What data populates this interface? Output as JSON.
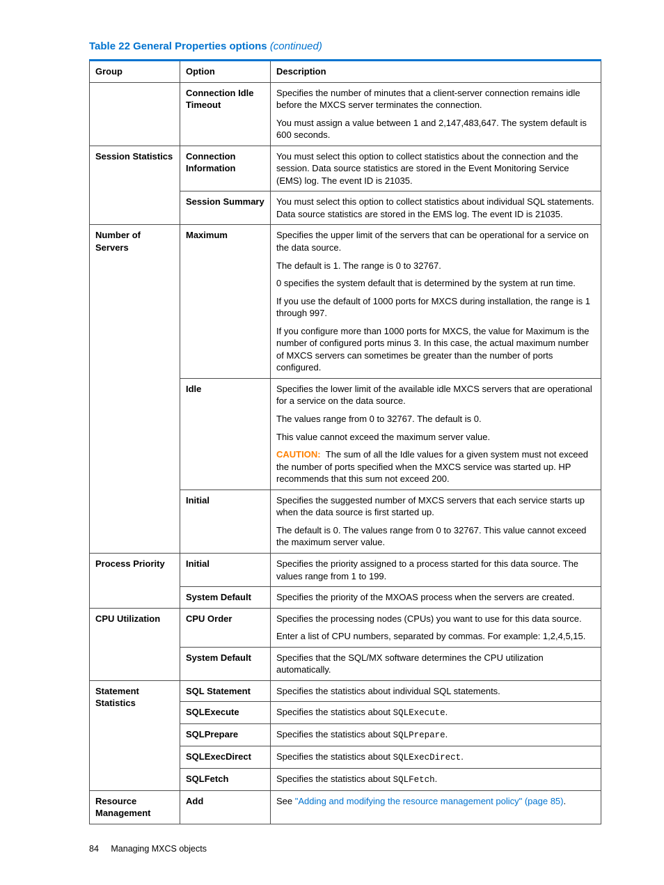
{
  "colors": {
    "accent": "#0073cf",
    "caution": "#ff8000",
    "border": "#4c4c4c"
  },
  "title": {
    "main": "Table 22 General Properties options",
    "suffix": "(continued)"
  },
  "columns": {
    "group": "Group",
    "option": "Option",
    "description": "Description"
  },
  "rows": [
    {
      "group": "",
      "groupRowspan": 1,
      "option": "Connection Idle Timeout",
      "description": [
        {
          "type": "p",
          "text": "Specifies the number of minutes that a client-server connection remains idle before the MXCS server terminates the connection."
        },
        {
          "type": "p",
          "text": "You must assign a value between 1 and 2,147,483,647. The system default is 600 seconds."
        }
      ]
    },
    {
      "group": "Session Statistics",
      "groupRowspan": 2,
      "option": "Connection Information",
      "description": [
        {
          "type": "p",
          "text": "You must select this option to collect statistics about the connection and the session. Data source statistics are stored in the Event Monitoring Service (EMS) log. The event ID is 21035."
        }
      ]
    },
    {
      "option": "Session Summary",
      "description": [
        {
          "type": "p",
          "text": "You must select this option to collect statistics about individual SQL statements. Data source statistics are stored in the EMS log. The event ID is 21035."
        }
      ]
    },
    {
      "group": "Number of Servers",
      "groupRowspan": 3,
      "option": "Maximum",
      "description": [
        {
          "type": "p",
          "text": "Specifies the upper limit of the servers that can be operational for a service on the data source."
        },
        {
          "type": "p",
          "text": "The default is 1. The range is 0 to 32767."
        },
        {
          "type": "p",
          "text": "0 specifies the system default that is determined by the system at run time."
        },
        {
          "type": "p",
          "text": "If you use the default of 1000 ports for MXCS during installation, the range is 1 through 997."
        },
        {
          "type": "p",
          "text": "If you configure more than 1000 ports for MXCS, the value for Maximum is the number of configured ports minus 3. In this case, the actual maximum number of MXCS servers can sometimes be greater than the number of ports configured."
        }
      ]
    },
    {
      "option": "Idle",
      "description": [
        {
          "type": "p",
          "text": "Specifies the lower limit of the available idle MXCS servers that are operational for a service on the data source."
        },
        {
          "type": "p",
          "text": "The values range from 0 to 32767. The default is 0."
        },
        {
          "type": "p",
          "text": "This value cannot exceed the maximum server value."
        },
        {
          "type": "caution",
          "label": "CAUTION:",
          "text": "The sum of all the Idle values for a given system must not exceed the number of ports specified when the MXCS service was started up. HP recommends that this sum not exceed 200."
        }
      ]
    },
    {
      "option": "Initial",
      "description": [
        {
          "type": "p",
          "text": "Specifies the suggested number of MXCS servers that each service starts up when the data source is first started up."
        },
        {
          "type": "p",
          "text": "The default is 0. The values range from 0 to 32767. This value cannot exceed the maximum server value."
        }
      ]
    },
    {
      "group": "Process Priority",
      "groupRowspan": 2,
      "option": "Initial",
      "description": [
        {
          "type": "p",
          "text": "Specifies the priority assigned to a process started for this data source. The values range from 1 to 199."
        }
      ]
    },
    {
      "option": "System Default",
      "description": [
        {
          "type": "p",
          "text": "Specifies the priority of the MXOAS process when the servers are created."
        }
      ]
    },
    {
      "group": "CPU Utilization",
      "groupRowspan": 2,
      "option": "CPU Order",
      "description": [
        {
          "type": "p",
          "text": "Specifies the processing nodes (CPUs) you want to use for this data source."
        },
        {
          "type": "p",
          "text": "Enter a list of CPU numbers, separated by commas. For example: 1,2,4,5,15."
        }
      ]
    },
    {
      "option": "System Default",
      "description": [
        {
          "type": "p",
          "text": "Specifies that the SQL/MX software determines the CPU utilization automatically."
        }
      ]
    },
    {
      "group": "Statement Statistics",
      "groupRowspan": 5,
      "option": "SQL Statement",
      "description": [
        {
          "type": "p",
          "text": "Specifies the statistics about individual SQL statements."
        }
      ]
    },
    {
      "option": "SQLExecute",
      "description": [
        {
          "type": "stat",
          "prefix": "Specifies the statistics about ",
          "code": "SQLExecute",
          "suffix": "."
        }
      ]
    },
    {
      "option": "SQLPrepare",
      "description": [
        {
          "type": "stat",
          "prefix": "Specifies the statistics about ",
          "code": "SQLPrepare",
          "suffix": "."
        }
      ]
    },
    {
      "option": "SQLExecDirect",
      "description": [
        {
          "type": "stat",
          "prefix": "Specifies the statistics about ",
          "code": "SQLExecDirect",
          "suffix": "."
        }
      ]
    },
    {
      "option": "SQLFetch",
      "description": [
        {
          "type": "stat",
          "prefix": "Specifies the statistics about ",
          "code": "SQLFetch",
          "suffix": "."
        }
      ]
    },
    {
      "group": "Resource Management",
      "groupRowspan": 1,
      "option": "Add",
      "description": [
        {
          "type": "link",
          "prefix": "See ",
          "text": "\"Adding and modifying the resource management policy\" (page 85)",
          "suffix": "."
        }
      ]
    }
  ],
  "footer": {
    "page": "84",
    "section": "Managing MXCS objects"
  }
}
